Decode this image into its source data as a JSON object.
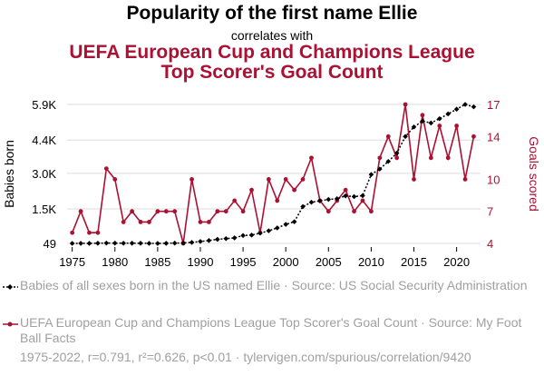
{
  "header": {
    "title": "Popularity of the first name Ellie",
    "subtitle": "correlates with",
    "title2_line1": "UEFA European Cup and Champions League",
    "title2_line2": "Top Scorer's Goal Count"
  },
  "colors": {
    "series1": "#000000",
    "series2": "#aa1133",
    "grid": "#dddddd",
    "legend_text": "#a0a0a0"
  },
  "legend": {
    "series1": "Babies of all sexes born in the US named Ellie · Source: US Social Security Administration",
    "series2": "UEFA European Cup and Champions League Top Scorer's Goal Count · Source: My Foot Ball Facts"
  },
  "footer": "1975-2022, r=0.791, r²=0.626, p<0.01 · tylervigen.com/spurious/correlation/9420",
  "chart_data": {
    "type": "line",
    "x": [
      1975,
      1976,
      1977,
      1978,
      1979,
      1980,
      1981,
      1982,
      1983,
      1984,
      1985,
      1986,
      1987,
      1988,
      1989,
      1990,
      1991,
      1992,
      1993,
      1994,
      1995,
      1996,
      1997,
      1998,
      1999,
      2000,
      2001,
      2002,
      2003,
      2004,
      2005,
      2006,
      2007,
      2008,
      2009,
      2010,
      2011,
      2012,
      2013,
      2014,
      2015,
      2016,
      2017,
      2018,
      2019,
      2020,
      2021,
      2022
    ],
    "xlabel": "",
    "x_ticks": [
      1975,
      1980,
      1985,
      1990,
      1995,
      2000,
      2005,
      2010,
      2015,
      2020
    ],
    "x_range": [
      1974.4,
      2022.8
    ],
    "series": [
      {
        "name": "Babies of all sexes born in the US named Ellie",
        "axis": "left",
        "ylabel": "Babies born",
        "y_range": [
          49,
          5900
        ],
        "y_ticks": [
          49,
          1500,
          3000,
          4400,
          5900
        ],
        "y_tick_labels": [
          "49",
          "1.5K",
          "3.0K",
          "4.4K",
          "5.9K"
        ],
        "values": [
          49,
          52,
          50,
          58,
          62,
          60,
          58,
          57,
          55,
          50,
          48,
          53,
          60,
          68,
          90,
          130,
          170,
          220,
          250,
          280,
          380,
          400,
          480,
          580,
          700,
          850,
          960,
          1600,
          1780,
          1840,
          1900,
          1930,
          2050,
          2020,
          2060,
          2950,
          3180,
          3500,
          3850,
          4550,
          4950,
          5200,
          5120,
          5300,
          5500,
          5700,
          5900,
          5800
        ]
      },
      {
        "name": "UEFA European Cup and Champions League Top Scorer's Goal Count",
        "axis": "right",
        "ylabel": "Goals scored",
        "y_range": [
          4,
          17
        ],
        "y_ticks": [
          4,
          7,
          10,
          14,
          17
        ],
        "values": [
          5,
          7,
          5,
          5,
          11,
          10,
          6,
          7,
          6,
          6,
          7,
          7,
          7,
          4,
          10,
          6,
          6,
          7,
          7,
          8,
          7,
          9,
          5,
          10,
          8,
          10,
          9,
          10,
          12,
          8,
          7,
          8,
          9,
          7,
          8,
          7,
          12,
          14,
          12,
          17,
          10,
          16,
          12,
          15,
          12,
          15,
          10,
          14
        ]
      }
    ]
  }
}
